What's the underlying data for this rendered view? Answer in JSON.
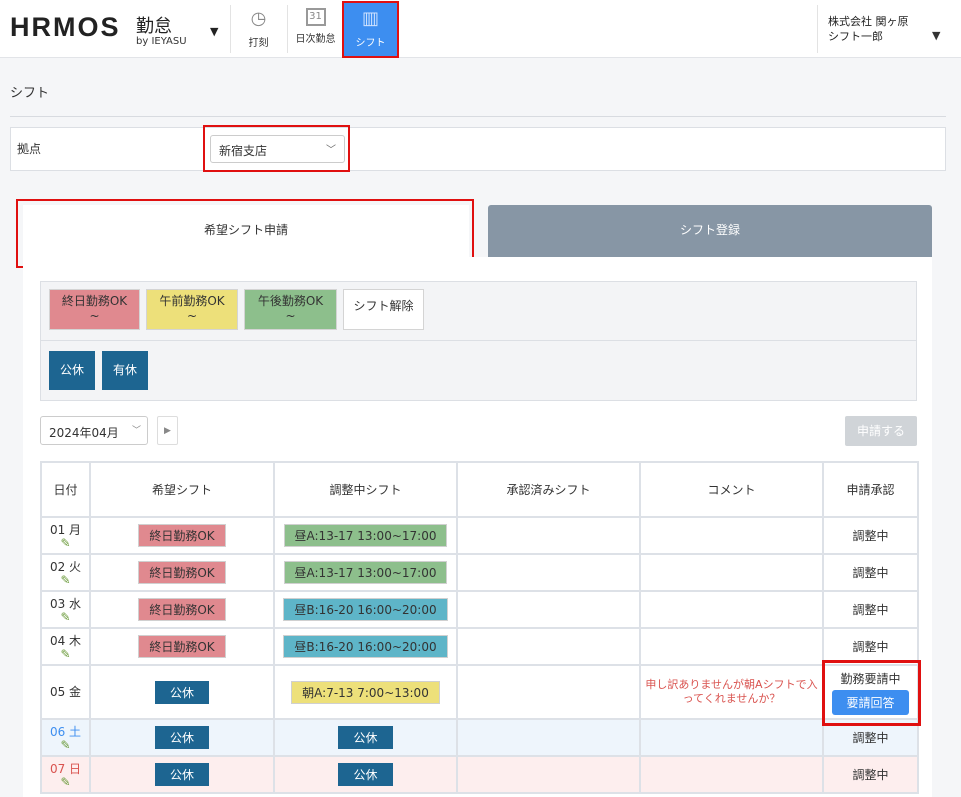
{
  "header": {
    "logo": "HRMOS",
    "logo_product": "勤怠",
    "logo_by": "by IEYASU",
    "nav": [
      {
        "label": "打刻",
        "icon": "clock-icon"
      },
      {
        "label": "日次勤怠",
        "icon": "calendar-icon"
      },
      {
        "label": "シフト",
        "icon": "notebook-icon",
        "active": true
      }
    ],
    "company": "株式会社 関ヶ原",
    "user": "シフト一郎"
  },
  "page": {
    "title": "シフト",
    "base_label": "拠点",
    "base_value": "新宿支店"
  },
  "tabs": [
    {
      "label": "希望シフト申請",
      "active": true
    },
    {
      "label": "シフト登録"
    }
  ],
  "palette": {
    "shift_buttons": [
      {
        "label": "終日勤務OK",
        "sub": "~",
        "color": "#e0898f"
      },
      {
        "label": "午前勤務OK",
        "sub": "~",
        "color": "#ede07a"
      },
      {
        "label": "午後勤務OK",
        "sub": "~",
        "color": "#8dbf8c"
      },
      {
        "label": "シフト解除",
        "sub": "",
        "color": "#ffffff"
      }
    ],
    "holiday_buttons": [
      "公休",
      "有休"
    ]
  },
  "month": "2024年04月",
  "apply_label": "申請する",
  "table": {
    "headers": [
      "日付",
      "希望シフト",
      "調整中シフト",
      "承認済みシフト",
      "コメント",
      "申請承認"
    ],
    "rows": [
      {
        "date": "01 月",
        "wish": "終日勤務OK",
        "adjust": "昼A:13-17 13:00~17:00",
        "approved": "",
        "comment": "",
        "status": "調整中"
      },
      {
        "date": "02 火",
        "wish": "終日勤務OK",
        "adjust": "昼A:13-17 13:00~17:00",
        "approved": "",
        "comment": "",
        "status": "調整中"
      },
      {
        "date": "03 水",
        "wish": "終日勤務OK",
        "adjust": "昼B:16-20 16:00~20:00",
        "approved": "",
        "comment": "",
        "status": "調整中"
      },
      {
        "date": "04 木",
        "wish": "終日勤務OK",
        "adjust": "昼B:16-20 16:00~20:00",
        "approved": "",
        "comment": "",
        "status": "調整中"
      },
      {
        "date": "05 金",
        "wish": "公休",
        "adjust": "朝A:7-13 7:00~13:00",
        "approved": "",
        "comment": "申し訳ありませんが朝Aシフトで入ってくれませんか？",
        "status": "勤務要請中",
        "action": "要請回答"
      },
      {
        "date": "06 土",
        "wish": "公休",
        "adjust": "公休",
        "approved": "",
        "comment": "",
        "status": "調整中"
      },
      {
        "date": "07 日",
        "wish": "公休",
        "adjust": "公休",
        "approved": "",
        "comment": "",
        "status": "調整中"
      }
    ]
  },
  "colors": {
    "accent": "#3d8ef0",
    "holiday": "#1d6591",
    "highlight": "#e01010"
  }
}
